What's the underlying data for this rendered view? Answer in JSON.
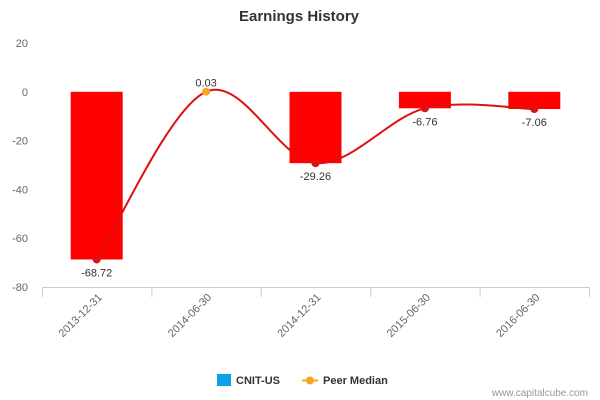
{
  "chart_data": {
    "type": "bar",
    "title": "Earnings History",
    "xlabel": "",
    "ylabel": "",
    "ylim": [
      -80,
      20
    ],
    "yticks": [
      20,
      0,
      -20,
      -40,
      -60,
      -80
    ],
    "categories": [
      "2013-12-31",
      "2014-06-30",
      "2014-12-31",
      "2015-06-30",
      "2016-06-30"
    ],
    "series": [
      {
        "name": "CNIT-US",
        "type": "bar",
        "values": [
          -68.72,
          null,
          -29.26,
          -6.76,
          -7.06
        ],
        "color": "#ff0000",
        "legend_color": "#0aa1e8"
      },
      {
        "name": "Peer Median",
        "type": "line",
        "values": [
          -68.72,
          0.03,
          -29.26,
          -6.76,
          -7.06
        ],
        "color": "#dd1111",
        "marker_colors": [
          "#dd1111",
          "#f5a623",
          "#dd1111",
          "#dd1111",
          "#dd1111"
        ]
      }
    ],
    "data_labels": [
      "-68.72",
      "0.03",
      "-29.26",
      "-6.76",
      "-7.06"
    ],
    "grid": false,
    "legend": "bottom-center"
  },
  "credit": "www.capitalcube.com"
}
